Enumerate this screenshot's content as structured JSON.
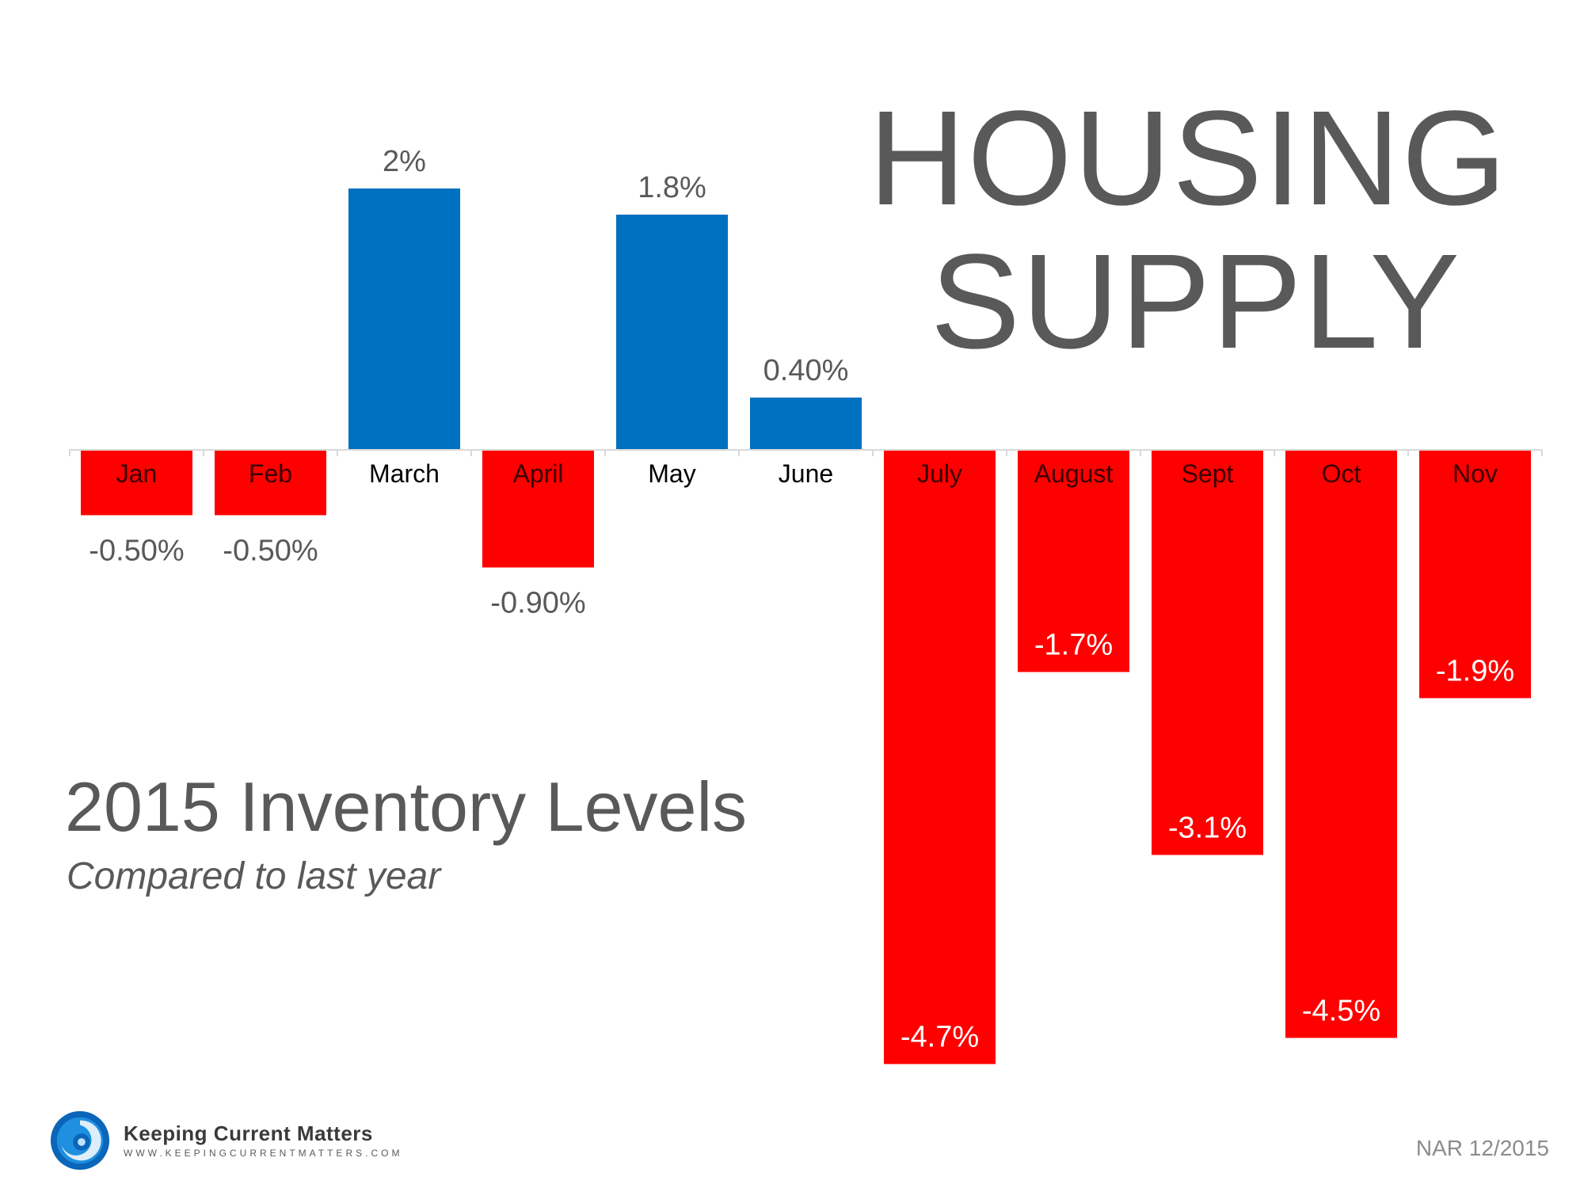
{
  "title": {
    "line1": "HOUSING",
    "line2": "SUPPLY"
  },
  "subtitle": "2015 Inventory Levels",
  "subtitle2": "Compared to last year",
  "logo": {
    "name": "Keeping Current Matters",
    "url": "WWW.KEEPINGCURRENTMATTERS.COM"
  },
  "source": "NAR 12/2015",
  "colors": {
    "positive": "#0070C0",
    "negative": "#FF0000",
    "text": "#595959"
  },
  "chart_data": {
    "type": "bar",
    "categories": [
      "Jan",
      "Feb",
      "March",
      "April",
      "May",
      "June",
      "July",
      "August",
      "Sept",
      "Oct",
      "Nov"
    ],
    "values": [
      -0.5,
      -0.5,
      2,
      -0.9,
      1.8,
      0.4,
      -4.7,
      -1.7,
      -3.1,
      -4.5,
      -1.9
    ],
    "labels": [
      "-0.50%",
      "-0.50%",
      "2%",
      "-0.90%",
      "1.8%",
      "0.40%",
      "-4.7%",
      "-1.7%",
      "-3.1%",
      "-4.5%",
      "-1.9%"
    ],
    "xlabel": "",
    "ylabel": "",
    "ylim": [
      -4.7,
      2
    ],
    "grid": false
  }
}
